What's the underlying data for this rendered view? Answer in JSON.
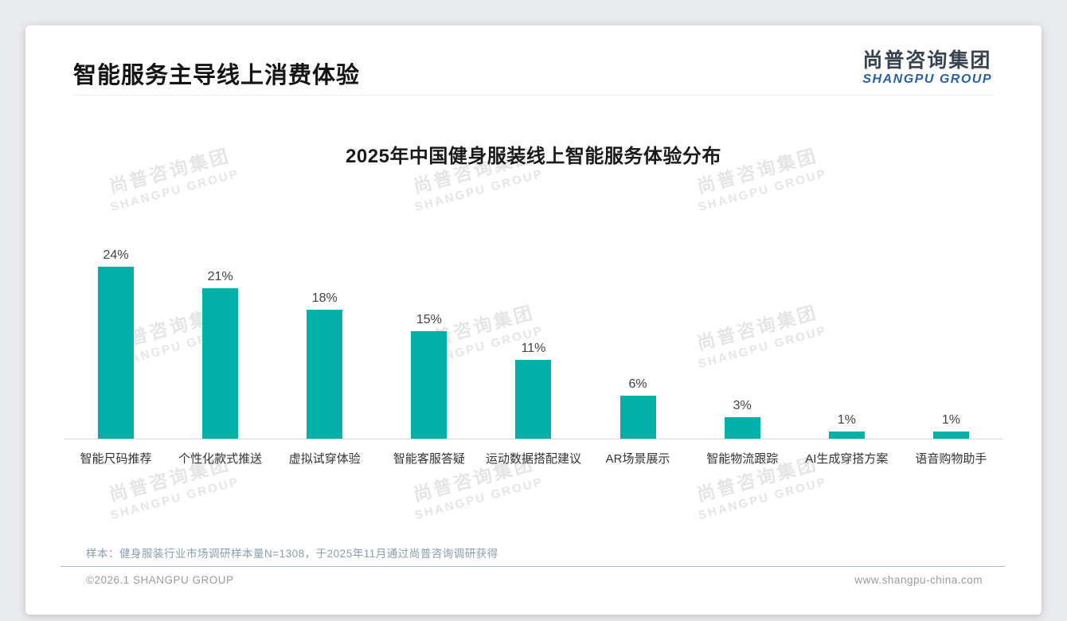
{
  "page": {
    "slide_title": "智能服务主导线上消费体验",
    "logo": {
      "cn": "尚普咨询集团",
      "en": "SHANGPU GROUP"
    },
    "watermark": {
      "cn": "尚普咨询集团",
      "en": "SHANGPU GROUP"
    },
    "footnote": "样本：健身服装行业市场调研样本量N=1308，于2025年11月通过尚普咨询调研获得",
    "footer_left": "©2026.1 SHANGPU GROUP",
    "footer_right": "www.shangpu-china.com"
  },
  "colors": {
    "bar": "#00b0a8",
    "logo_blue": "#2c5ea0",
    "footnote_text": "#8b9cab",
    "watermark": "#e4e5e7",
    "axis_line": "#d9d9d9"
  },
  "chart_data": {
    "type": "bar",
    "title": "2025年中国健身服装线上智能服务体验分布",
    "categories": [
      "智能尺码推荐",
      "个性化款式推送",
      "虚拟试穿体验",
      "智能客服答疑",
      "运动数据搭配建议",
      "AR场景展示",
      "智能物流跟踪",
      "AI生成穿搭方案",
      "语音购物助手"
    ],
    "values": [
      24,
      21,
      18,
      15,
      11,
      6,
      3,
      1,
      1
    ],
    "value_labels": [
      "24%",
      "21%",
      "18%",
      "15%",
      "11%",
      "6%",
      "3%",
      "1%",
      "1%"
    ],
    "unit": "%",
    "xlabel": "",
    "ylabel": "",
    "ylim": [
      0,
      26
    ],
    "grid": false,
    "legend": false
  }
}
